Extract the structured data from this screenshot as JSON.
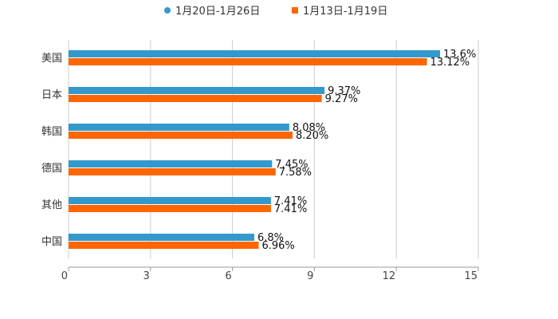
{
  "chart_data": {
    "type": "bar",
    "orientation": "horizontal",
    "title": "",
    "xlabel": "",
    "ylabel": "",
    "categories": [
      "美国",
      "日本",
      "韩国",
      "德国",
      "其他",
      "中国"
    ],
    "series": [
      {
        "name": "1月20日-1月26日",
        "color": "#3399cc",
        "values": [
          13.6,
          9.37,
          8.08,
          7.45,
          7.41,
          6.8
        ],
        "labels": [
          "13.6%",
          "9.37%",
          "8.08%",
          "7.45%",
          "7.41%",
          "6.8%"
        ]
      },
      {
        "name": "1月13日-1月19日",
        "color": "#ff6600",
        "values": [
          13.12,
          9.27,
          8.2,
          7.58,
          7.41,
          6.96
        ],
        "labels": [
          "13.12%",
          "9.27%",
          "8.20%",
          "7.58%",
          "7.41%",
          "6.96%"
        ]
      }
    ],
    "xlim": [
      0,
      15
    ],
    "xticks": [
      "0",
      "3",
      "6",
      "9",
      "12",
      "15"
    ],
    "grid": true,
    "legend": "top-center"
  }
}
